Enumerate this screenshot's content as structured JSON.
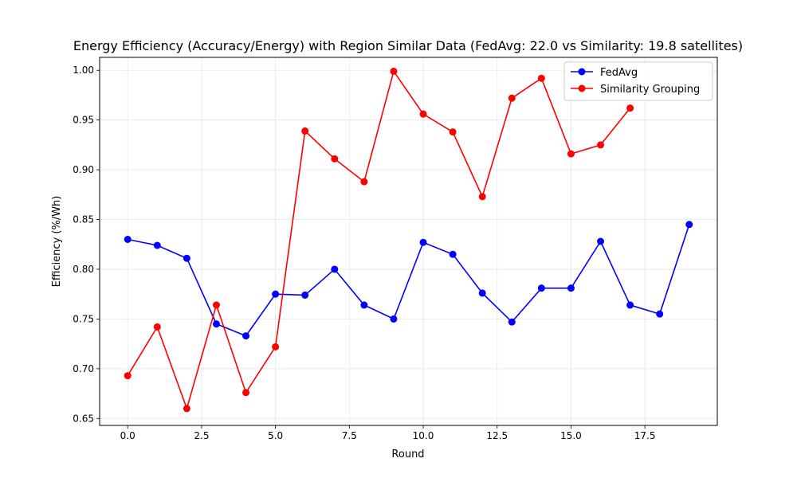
{
  "chart_data": {
    "type": "line",
    "title": "Energy Efficiency (Accuracy/Energy) with Region Similar Data (FedAvg: 22.0 vs Similarity: 19.8 satellites)",
    "xlabel": "Round",
    "ylabel": "Efficiency (%/Wh)",
    "xlim": [
      -0.95,
      19.95
    ],
    "ylim": [
      0.643,
      1.013
    ],
    "xticks": [
      0.0,
      2.5,
      5.0,
      7.5,
      10.0,
      12.5,
      15.0,
      17.5
    ],
    "xtick_labels": [
      "0.0",
      "2.5",
      "5.0",
      "7.5",
      "10.0",
      "12.5",
      "15.0",
      "17.5"
    ],
    "yticks": [
      0.65,
      0.7,
      0.75,
      0.8,
      0.85,
      0.9,
      0.95,
      1.0
    ],
    "ytick_labels": [
      "0.65",
      "0.70",
      "0.75",
      "0.80",
      "0.85",
      "0.90",
      "0.95",
      "1.00"
    ],
    "grid": true,
    "legend_position": "top-right",
    "series": [
      {
        "name": "FedAvg",
        "color": "#0000ff",
        "x": [
          0,
          1,
          2,
          3,
          4,
          5,
          6,
          7,
          8,
          9,
          10,
          11,
          12,
          13,
          14,
          15,
          16,
          17,
          18,
          19
        ],
        "values": [
          0.83,
          0.824,
          0.811,
          0.745,
          0.733,
          0.775,
          0.774,
          0.8,
          0.764,
          0.75,
          0.827,
          0.815,
          0.776,
          0.747,
          0.781,
          0.781,
          0.828,
          0.764,
          0.755,
          0.845
        ]
      },
      {
        "name": "Similarity Grouping",
        "color": "#ff0000",
        "x": [
          0,
          1,
          2,
          3,
          4,
          5,
          6,
          7,
          8,
          9,
          10,
          11,
          12,
          13,
          14,
          15,
          16,
          17
        ],
        "values": [
          0.693,
          0.742,
          0.66,
          0.764,
          0.676,
          0.722,
          0.939,
          0.911,
          0.888,
          0.999,
          0.956,
          0.938,
          0.873,
          0.972,
          0.992,
          0.916,
          0.925,
          0.962
        ]
      }
    ]
  }
}
